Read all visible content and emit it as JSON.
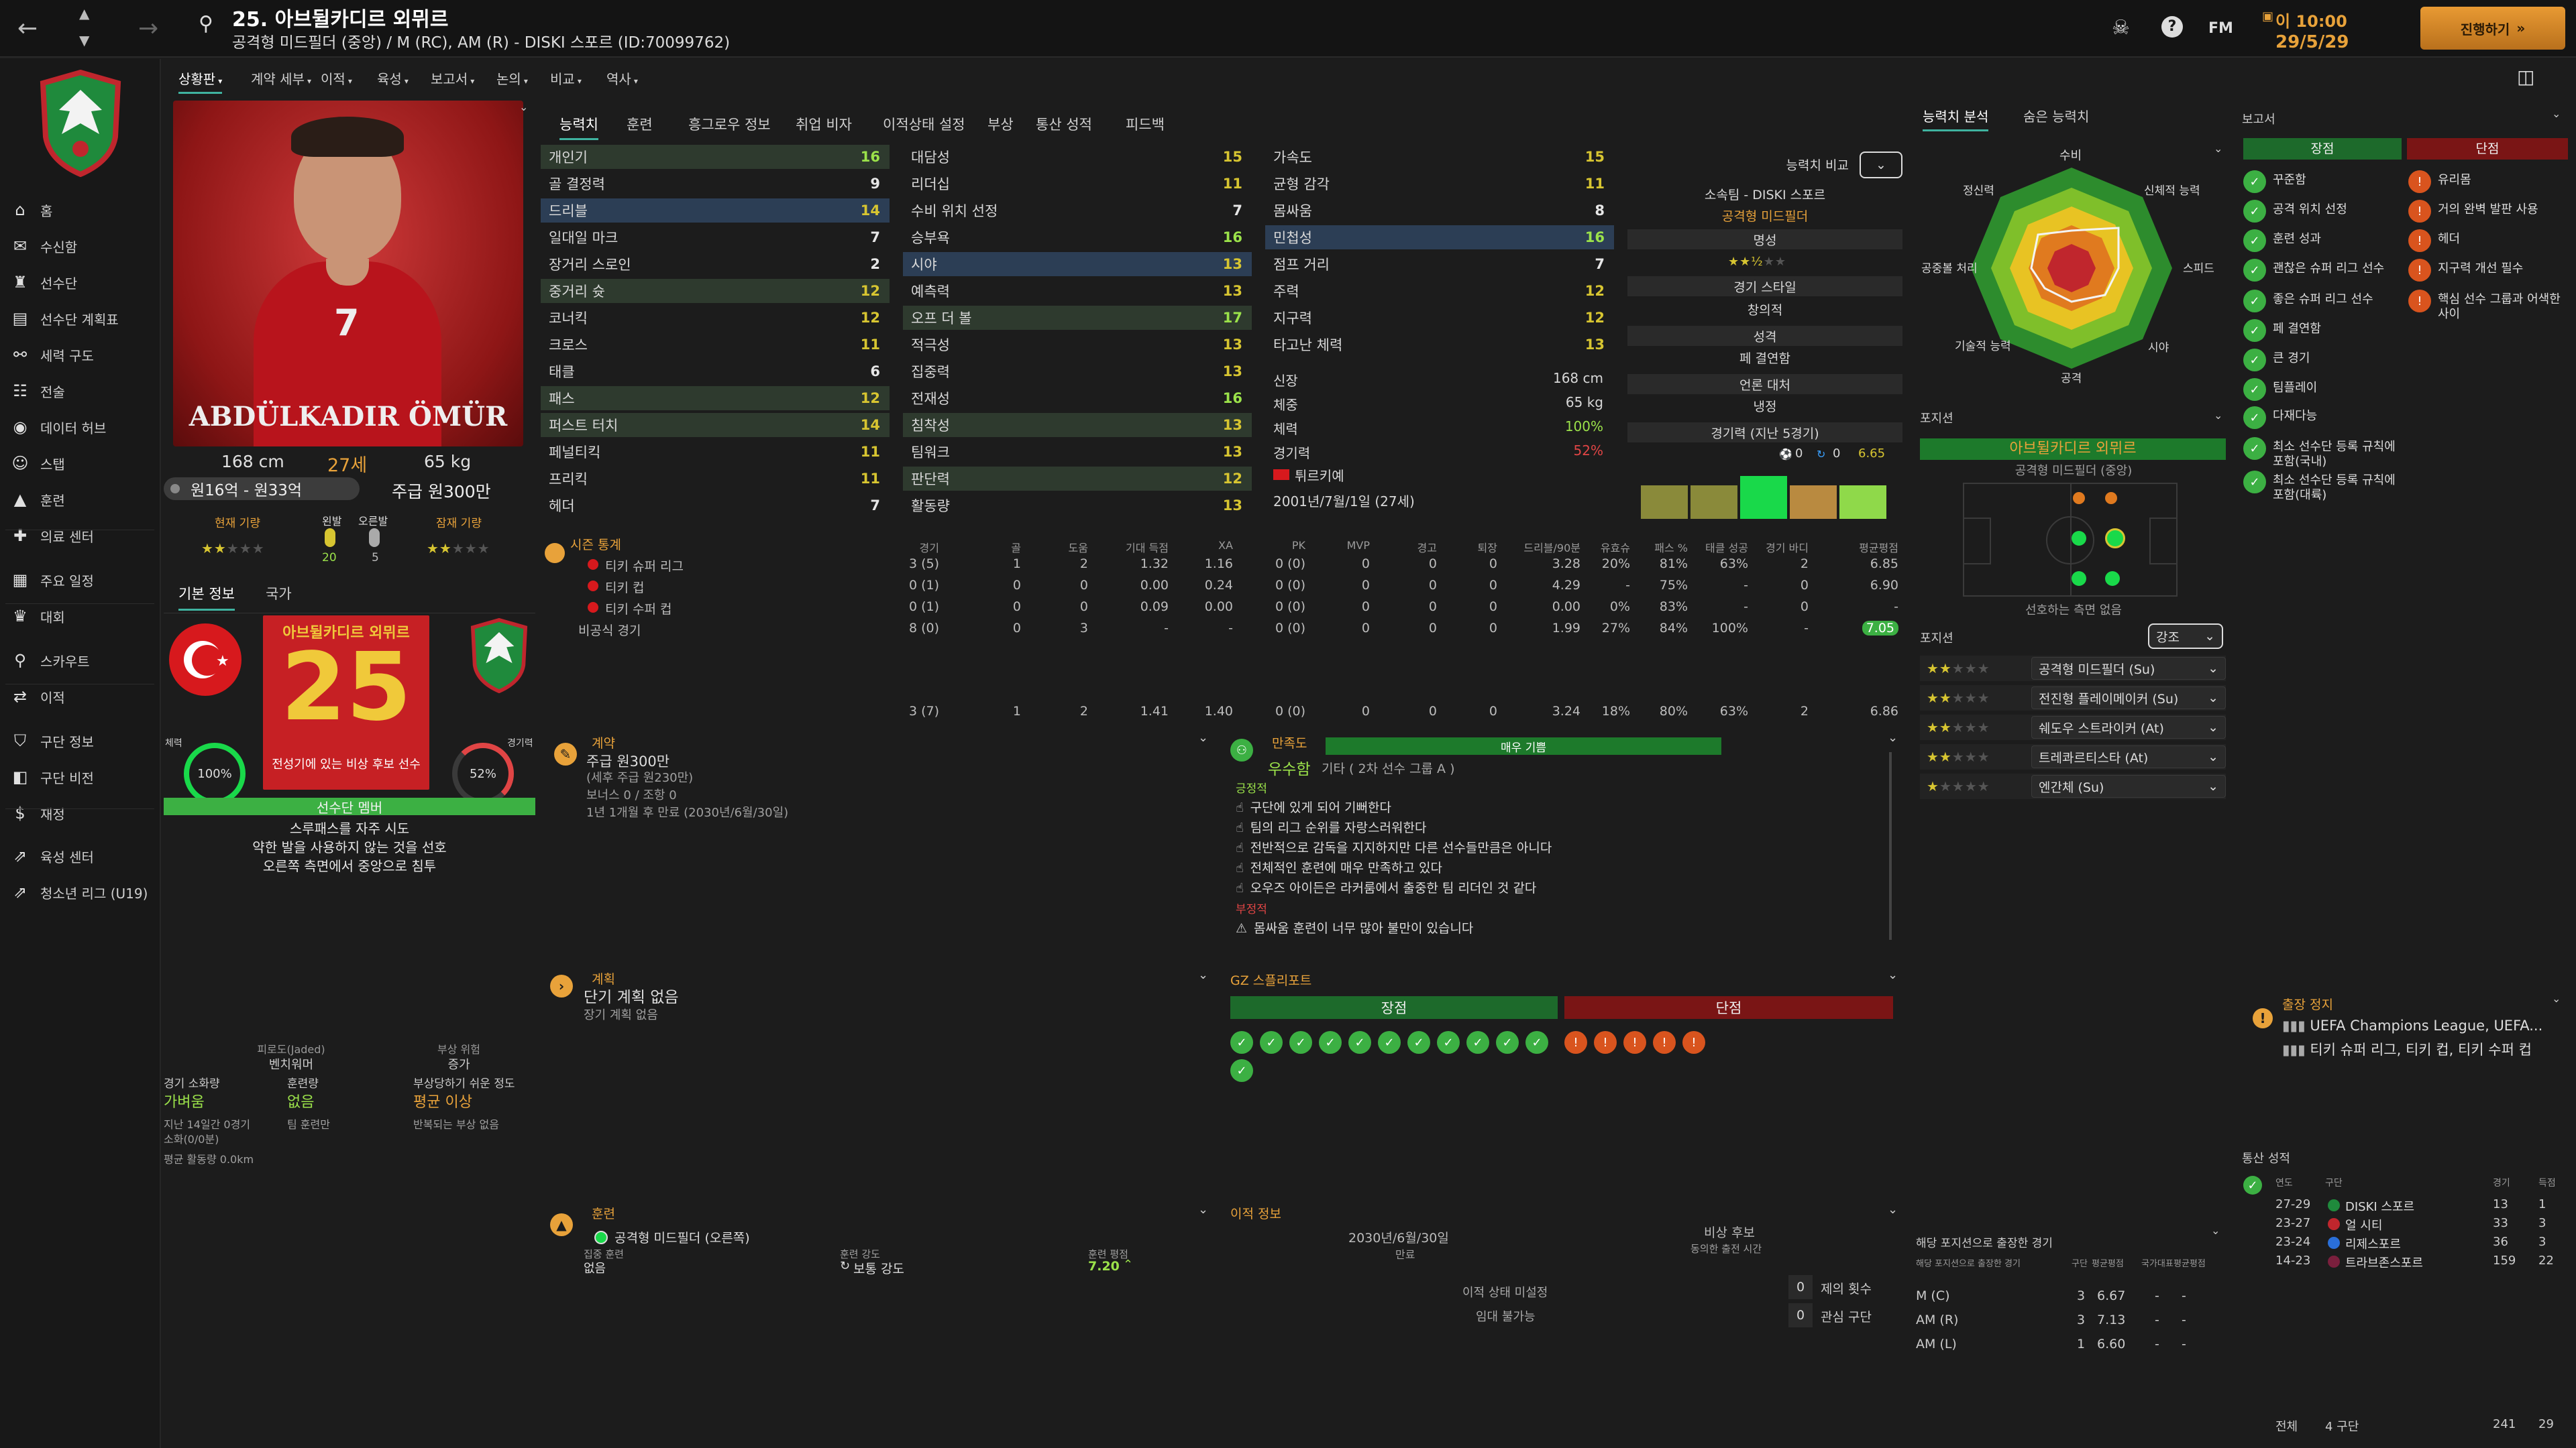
{
  "topbar": {
    "player_title": "25. 아브뒬카디르 외뮈르",
    "player_sub": "공격형 미드필더 (중앙) / M (RC), AM (R) - DISKI 스포르 (ID:70099762)",
    "fm_label": "FM",
    "date_day": "이 10:00",
    "date_date": "29/5/29",
    "continue_label": "진행하기"
  },
  "sidebar": {
    "items": [
      {
        "icon": "home-icon",
        "label": "홈"
      },
      {
        "icon": "inbox-icon",
        "label": "수신함"
      },
      {
        "icon": "squad-icon",
        "label": "선수단"
      },
      {
        "icon": "planner-icon",
        "label": "선수단 계획표"
      },
      {
        "icon": "dynamics-icon",
        "label": "세력 구도"
      },
      {
        "icon": "tactics-icon",
        "label": "전술"
      },
      {
        "icon": "data-hub-icon",
        "label": "데이터 허브"
      },
      {
        "icon": "staff-icon",
        "label": "스탭"
      },
      {
        "icon": "training-icon",
        "label": "훈련"
      },
      {
        "icon": "medical-icon",
        "label": "의료 센터"
      },
      {
        "icon": "schedule-icon",
        "label": "주요 일정"
      },
      {
        "icon": "competitions-icon",
        "label": "대회"
      },
      {
        "icon": "scouting-icon",
        "label": "스카우트"
      },
      {
        "icon": "transfers-icon",
        "label": "이적"
      },
      {
        "icon": "club-info-icon",
        "label": "구단 정보"
      },
      {
        "icon": "club-vision-icon",
        "label": "구단 비전"
      },
      {
        "icon": "finances-icon",
        "label": "재정"
      },
      {
        "icon": "development-icon",
        "label": "육성 센터"
      },
      {
        "icon": "youth-league-icon",
        "label": "청소년 리그 (U19)"
      }
    ]
  },
  "subnav": [
    "상황판",
    "계약 세부",
    "이적",
    "육성",
    "보고서",
    "논의",
    "비교",
    "역사"
  ],
  "profile": {
    "name_overlay": "ABDÜLKADIR ÖMÜR",
    "height": "168 cm",
    "age": "27세",
    "weight": "65 kg",
    "value": "원16억 - 원33억",
    "wage": "주급 원300만",
    "current_ability_label": "현재 기량",
    "potential_ability_label": "잠재 기량",
    "left_foot_label": "왼발",
    "right_foot_label": "오른발",
    "left_foot_val": "20",
    "right_foot_val": "5",
    "tab_basic": "기본 정보",
    "tab_nation": "국가",
    "banner_name": "아브뒬카디르 외뮈르",
    "shirt_number": "25",
    "status_label": "전성기에 있는 비상 후보 선수",
    "fitness_pct": "100%",
    "fitness_label": "체력",
    "match_sharp_pct": "52%",
    "match_sharp_label": "경기력",
    "role_strip": "선수단 멤버",
    "traits": [
      "스루패스를 자주 시도",
      "약한 발을 사용하지 않는 것을 선호",
      "오른쪽 측면에서 중앙으로 침투"
    ],
    "lower": {
      "fatigue_head": "피로도(Jaded)",
      "fatigue_val": "벤치워머",
      "injury_head": "부상 위험",
      "injury_val": "증가",
      "match_load_head": "경기 소화량",
      "match_load_val": "가벼움",
      "training_load_head": "훈련량",
      "training_load_val": "없음",
      "proneness_head": "부상당하기 쉬운 정도",
      "proneness_val": "평균 이상",
      "load_note1": "지난 14일간 0경기",
      "load_note2": "소화(0/0분)",
      "load_note3": "팀 훈련만",
      "load_note4": "반복되는 부상 없음",
      "distance": "평균 활동량 0.0km"
    }
  },
  "attr_tabs": [
    "능력치",
    "훈련",
    "흥그로우 정보",
    "취업 비자",
    "이적상태 설정",
    "부상",
    "통산 성적",
    "피드백"
  ],
  "technical": [
    [
      "개인기",
      "16"
    ],
    [
      "골 결정력",
      "9"
    ],
    [
      "드리블",
      "14"
    ],
    [
      "일대일 마크",
      "7"
    ],
    [
      "장거리 스로인",
      "2"
    ],
    [
      "중거리 슛",
      "12"
    ],
    [
      "코너킥",
      "12"
    ],
    [
      "크로스",
      "11"
    ],
    [
      "태클",
      "6"
    ],
    [
      "패스",
      "12"
    ],
    [
      "퍼스트 터치",
      "14"
    ],
    [
      "페널티킥",
      "11"
    ],
    [
      "프리킥",
      "11"
    ],
    [
      "헤더",
      "7"
    ]
  ],
  "mental": [
    [
      "대담성",
      "15"
    ],
    [
      "리더십",
      "11"
    ],
    [
      "수비 위치 선정",
      "7"
    ],
    [
      "승부욕",
      "16"
    ],
    [
      "시야",
      "13"
    ],
    [
      "예측력",
      "13"
    ],
    [
      "오프 더 볼",
      "17"
    ],
    [
      "적극성",
      "13"
    ],
    [
      "집중력",
      "13"
    ],
    [
      "전재성",
      "16"
    ],
    [
      "침착성",
      "13"
    ],
    [
      "팀워크",
      "13"
    ],
    [
      "판단력",
      "12"
    ],
    [
      "활동량",
      "13"
    ]
  ],
  "physical": [
    [
      "가속도",
      "15"
    ],
    [
      "균형 감각",
      "11"
    ],
    [
      "몸싸움",
      "8"
    ],
    [
      "민첩성",
      "16"
    ],
    [
      "점프 거리",
      "7"
    ],
    [
      "주력",
      "12"
    ],
    [
      "지구력",
      "12"
    ],
    [
      "타고난 체력",
      "13"
    ]
  ],
  "physical_extra": {
    "height_label": "신장",
    "height": "168 cm",
    "weight_label": "체중",
    "weight": "65 kg",
    "fitness_label": "체력",
    "fitness": "100%",
    "sharp_label": "경기력",
    "sharp": "52%",
    "nation": "튀르키예",
    "dob": "2001년/7월/1일 (27세)"
  },
  "compare": {
    "title": "능력치 비교",
    "club": "소속팀 - DISKI 스포르",
    "role": "공격형 미드필더",
    "rep_label": "명성",
    "style_label": "경기 스타일",
    "style_val": "창의적",
    "personality_label": "성격",
    "personality_val": "페 결연함",
    "media_label": "언론 대처",
    "media_val": "냉정",
    "form_label": "경기력 (지난 5경기)",
    "form_stat1": "0",
    "form_stat2": "0",
    "form_avg": "6.65"
  },
  "season": {
    "header": "시즌 통계",
    "cols": [
      "경기",
      "골",
      "도움",
      "기대 득점",
      "XA",
      "PK",
      "MVP",
      "경고",
      "퇴장",
      "드리블/90분",
      "유효슈",
      "패스 %",
      "태클 성공",
      "경기 바디",
      "평균평점"
    ],
    "rows": [
      {
        "comp": "티키 슈퍼 리그",
        "vals": [
          "3 (5)",
          "1",
          "2",
          "1.32",
          "1.16",
          "0 (0)",
          "0",
          "0",
          "0",
          "3.28",
          "20%",
          "81%",
          "63%",
          "2",
          "6.85"
        ]
      },
      {
        "comp": "티키 컵",
        "vals": [
          "0 (1)",
          "0",
          "0",
          "0.00",
          "0.24",
          "0 (0)",
          "0",
          "0",
          "0",
          "4.29",
          "-",
          "75%",
          "-",
          "0",
          "6.90"
        ]
      },
      {
        "comp": "티키 수퍼 컵",
        "vals": [
          "0 (1)",
          "0",
          "0",
          "0.09",
          "0.00",
          "0 (0)",
          "0",
          "0",
          "0",
          "0.00",
          "0%",
          "83%",
          "-",
          "0",
          "-"
        ]
      },
      {
        "comp": "비공식 경기",
        "vals": [
          "8 (0)",
          "0",
          "3",
          "-",
          "-",
          "0 (0)",
          "0",
          "0",
          "0",
          "1.99",
          "27%",
          "84%",
          "100%",
          "-",
          "7.05"
        ]
      }
    ],
    "total": [
      "3 (7)",
      "1",
      "2",
      "1.41",
      "1.40",
      "0 (0)",
      "0",
      "0",
      "0",
      "3.24",
      "18%",
      "80%",
      "63%",
      "2",
      "6.86"
    ]
  },
  "contract": {
    "header": "계약",
    "wage": "주급 원300만",
    "wage_detail": "(세후 주급 원230만)",
    "bonus": "보너스 0 / 조항 0",
    "expiry": "1년 1개월 후 만료 (2030년/6월/30일)"
  },
  "happiness": {
    "header": "만족도",
    "level": "매우 기쁨",
    "grade": "우수함",
    "grade_note": "기타 ( 2차 선수 그룹 A )",
    "positive_label": "긍정적",
    "positives": [
      "구단에 있게 되어 기뻐한다",
      "팀의 리그 순위를 자랑스러워한다",
      "전반적으로 감독을 지지하지만 다른 선수들만큼은 아니다",
      "전체적인 훈련에 매우 만족하고 있다",
      "오우즈 아이든은 라커룸에서 출중한 팀 리더인 것 같다"
    ],
    "negative_label": "부정적",
    "negatives": [
      "몸싸움 훈련이 너무 많아 불만이 있습니다"
    ]
  },
  "plan": {
    "header": "계획",
    "short": "단기 계획 없음",
    "long": "장기 계획 없음"
  },
  "gz": {
    "header": "GZ 스플리포트",
    "strengths": "장점",
    "weaknesses": "단점"
  },
  "training": {
    "header": "훈련",
    "role": "공격형 미드필더 (오른쪽)",
    "extra_label": "집중 훈련",
    "extra_val": "없음",
    "intensity_label": "훈련 강도",
    "intensity_val": "보통 강도",
    "rating_label": "훈련 평점",
    "rating_val": "7.20"
  },
  "transfer": {
    "header": "이적 정보",
    "expiry_date": "2030년/6월/30일",
    "expiry_label": "만료",
    "squad_status": "비상 후보",
    "squad_note": "동의한 출전 시간",
    "status_row": "이적 상태 미설정",
    "status_row2": "임대 불가능",
    "offers_count": "0",
    "offers_label": "제의 횟수",
    "interest_count": "0",
    "interest_label": "관심 구단"
  },
  "ability": {
    "tab1": "능력치 분석",
    "tab2": "숨은 능력치",
    "labels": [
      "수비",
      "신체적 능력",
      "스피드",
      "시야",
      "공격",
      "기술적 능력",
      "공중볼 처리",
      "정신력"
    ]
  },
  "position": {
    "header": "포지션",
    "name": "아브뒬카디르 외뮈르",
    "role": "공격형 미드필더 (중앙)",
    "note": "선호하는 측면 없음",
    "pos_label": "포지션",
    "highlight_dd": "강조",
    "roles": [
      {
        "stars": 2,
        "role": "공격형 미드필더 (Su)"
      },
      {
        "stars": 2,
        "role": "전진형 플레이메이커 (Su)"
      },
      {
        "stars": 2,
        "role": "쉐도우 스트라이커 (At)"
      },
      {
        "stars": 2,
        "role": "트레콰르티스타 (At)"
      },
      {
        "stars": 1,
        "role": "엔간체 (Su)"
      }
    ]
  },
  "pos_stats": {
    "header": "해당 포지션으로 출장한 경기",
    "cols": [
      "구단",
      "평균평점",
      "국가대표",
      "평균평점"
    ],
    "subcol": "해당 포지션으로 출장한 경기",
    "rows": [
      {
        "pos": "M (C)",
        "apps": "3",
        "rating": "6.67"
      },
      {
        "pos": "AM (R)",
        "apps": "3",
        "rating": "7.13"
      },
      {
        "pos": "AM (L)",
        "apps": "1",
        "rating": "6.60"
      }
    ]
  },
  "report": {
    "header": "보고서",
    "strengths_label": "장점",
    "weaknesses_label": "단점",
    "strengths": [
      "꾸준함",
      "공격 위치 선정",
      "훈련 성과",
      "괜찮은 슈퍼 리그 선수",
      "좋은 슈퍼 리그 선수",
      "페 결연함",
      "큰 경기",
      "팀플레이",
      "다재다능",
      "최소 선수단 등록 규칙에 포함(국내)",
      "최소 선수단 등록 규칙에 포함(대륙)"
    ],
    "weaknesses": [
      "유리몸",
      "거의 완벽 발판 사용",
      "헤더",
      "지구력 개선 필수",
      "핵심 선수 그룹과 어색한 사이"
    ]
  },
  "suspension": {
    "header": "출장 정지",
    "line1": "UEFA Champions League, UEFA...",
    "line2": "티키 슈퍼 리그, 티키 컵, 티키 수퍼 컵"
  },
  "career": {
    "header": "통산 성적",
    "cols": [
      "연도",
      "구단",
      "경기",
      "득점"
    ],
    "rows": [
      {
        "year": "27-29",
        "club": "DISKI 스포르",
        "apps": "13",
        "goals": "1"
      },
      {
        "year": "23-27",
        "club": "얼 시티",
        "apps": "33",
        "goals": "3"
      },
      {
        "year": "23-24",
        "club": "리제스포르",
        "apps": "36",
        "goals": "3"
      },
      {
        "year": "14-23",
        "club": "트라브존스포르",
        "apps": "159",
        "goals": "22"
      }
    ],
    "total_label": "전체",
    "total_clubs": "4 구단",
    "total_apps": "241",
    "total_goals": "29"
  }
}
